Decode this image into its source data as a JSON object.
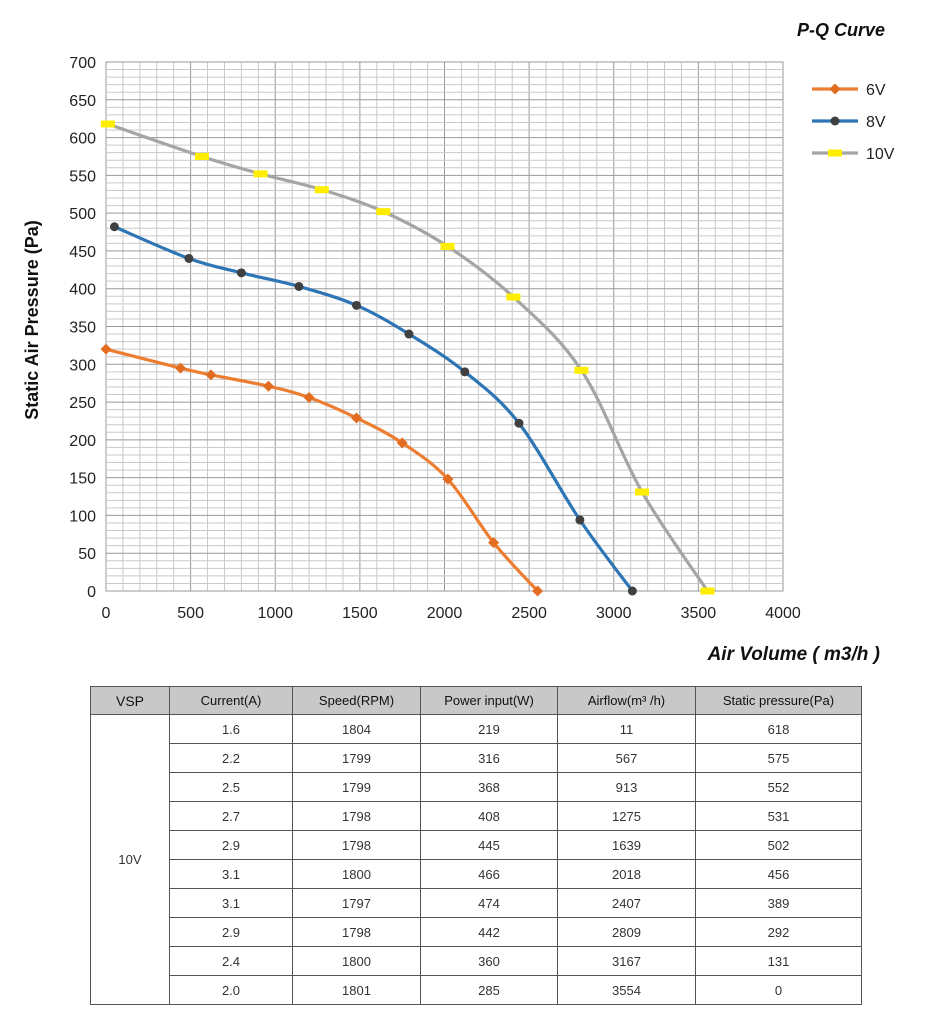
{
  "chart_data": {
    "type": "line",
    "title": "P-Q Curve",
    "xlabel": "Air Volume ( m3/h )",
    "ylabel": "Static Air Pressure  (Pa)",
    "xlim": [
      0,
      4000
    ],
    "ylim": [
      0,
      700
    ],
    "x_ticks": [
      "0",
      "500",
      "1000",
      "1500",
      "2000",
      "2500",
      "3000",
      "3500",
      "4000"
    ],
    "y_ticks": [
      "0",
      "50",
      "100",
      "150",
      "200",
      "250",
      "300",
      "350",
      "400",
      "450",
      "500",
      "550",
      "600",
      "650",
      "700"
    ],
    "grid": true,
    "legend_position": "top-right",
    "series": [
      {
        "name": "6V",
        "color": "#ed7d31",
        "marker": "diamond",
        "x": [
          0,
          440,
          620,
          960,
          1200,
          1480,
          1750,
          2020,
          2290,
          2550
        ],
        "y": [
          320,
          295,
          286,
          271,
          256,
          229,
          196,
          148,
          64,
          0
        ]
      },
      {
        "name": "8V",
        "color": "#2e75b6",
        "marker": "circle",
        "x": [
          50,
          490,
          800,
          1140,
          1480,
          1790,
          2120,
          2440,
          2800,
          3110
        ],
        "y": [
          482,
          440,
          421,
          403,
          378,
          340,
          290,
          222,
          94,
          0
        ]
      },
      {
        "name": "10V",
        "color": "#a5a5a5",
        "marker": "bar",
        "x": [
          11,
          567,
          913,
          1275,
          1639,
          2018,
          2407,
          2809,
          3167,
          3554
        ],
        "y": [
          618,
          575,
          552,
          531,
          502,
          456,
          389,
          292,
          131,
          0
        ]
      }
    ]
  },
  "table": {
    "headers": [
      "VSP",
      "Current(A)",
      "Speed(RPM)",
      "Power input(W)",
      "Airflow(m³ /h)",
      "Static pressure(Pa)"
    ],
    "vsp": "10V",
    "rows": [
      [
        "1.6",
        "1804",
        "219",
        "11",
        "618"
      ],
      [
        "2.2",
        "1799",
        "316",
        "567",
        "575"
      ],
      [
        "2.5",
        "1799",
        "368",
        "913",
        "552"
      ],
      [
        "2.7",
        "1798",
        "408",
        "1275",
        "531"
      ],
      [
        "2.9",
        "1798",
        "445",
        "1639",
        "502"
      ],
      [
        "3.1",
        "1800",
        "466",
        "2018",
        "456"
      ],
      [
        "3.1",
        "1797",
        "474",
        "2407",
        "389"
      ],
      [
        "2.9",
        "1798",
        "442",
        "2809",
        "292"
      ],
      [
        "2.4",
        "1800",
        "360",
        "3167",
        "131"
      ],
      [
        "2.0",
        "1801",
        "285",
        "3554",
        "0"
      ]
    ]
  }
}
